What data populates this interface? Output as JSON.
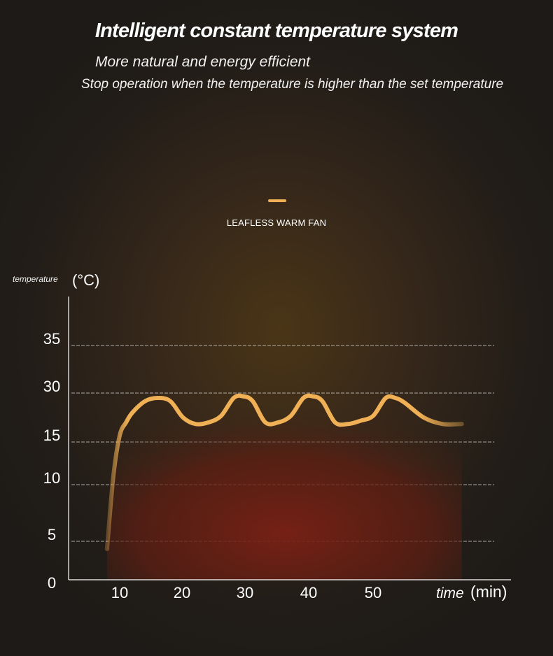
{
  "header": {
    "title": "Intelligent constant temperature system",
    "subtitle_1": "More natural and energy efficient",
    "subtitle_2": "Stop operation when the temperature is higher than the set temperature"
  },
  "colors": {
    "curve": "#f0b055",
    "fill": "#7a2015",
    "grid": "#d8d8d8",
    "axis": "#ffffff"
  },
  "chart_data": {
    "type": "line",
    "title": "",
    "legend": {
      "placement": "top-center",
      "entries": [
        "LEAFLESS WARM FAN"
      ]
    },
    "ylabel": {
      "text": "temperature",
      "unit": "(°C)"
    },
    "xlabel": {
      "text": "time",
      "unit": "(min)"
    },
    "y_ticks": [
      "0",
      "5",
      "10",
      "15",
      "30",
      "35"
    ],
    "x_ticks": [
      "10",
      "20",
      "30",
      "40",
      "50"
    ],
    "grid": true,
    "series": [
      {
        "name": "LEAFLESS WARM FAN",
        "points": [
          [
            8,
            4
          ],
          [
            9,
            11
          ],
          [
            10,
            17
          ],
          [
            11,
            21
          ],
          [
            12,
            24
          ],
          [
            14,
            27.5
          ],
          [
            16,
            28.5
          ],
          [
            18,
            27.5
          ],
          [
            20,
            22.5
          ],
          [
            22,
            20.5
          ],
          [
            24,
            21
          ],
          [
            26,
            23
          ],
          [
            28,
            28.5
          ],
          [
            29.5,
            29
          ],
          [
            31,
            27.5
          ],
          [
            33,
            21
          ],
          [
            35,
            21
          ],
          [
            37,
            23
          ],
          [
            39,
            28.5
          ],
          [
            40.5,
            29
          ],
          [
            42,
            27.5
          ],
          [
            44,
            21
          ],
          [
            46,
            20.5
          ],
          [
            48,
            21.5
          ],
          [
            50,
            23
          ],
          [
            52,
            28.5
          ],
          [
            53.5,
            28.5
          ],
          [
            55,
            27
          ],
          [
            58,
            22.5
          ],
          [
            61,
            20.5
          ],
          [
            64,
            20.5
          ]
        ]
      }
    ]
  }
}
